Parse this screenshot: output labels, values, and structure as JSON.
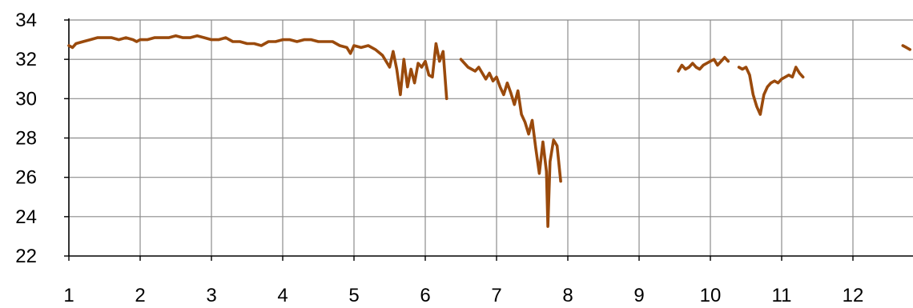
{
  "chart_data": {
    "type": "line",
    "title": "",
    "xlabel": "",
    "ylabel": "",
    "xlim": [
      1,
      12.8
    ],
    "ylim": [
      22,
      34
    ],
    "x_ticks": [
      1,
      2,
      3,
      4,
      5,
      6,
      7,
      8,
      9,
      10,
      11,
      12
    ],
    "x_tick_labels": [
      "1",
      "2",
      "3",
      "4",
      "5",
      "6",
      "7",
      "8",
      "9",
      "10",
      "11",
      "12"
    ],
    "y_ticks": [
      22,
      24,
      26,
      28,
      30,
      32,
      34
    ],
    "y_tick_labels": [
      "22",
      "24",
      "26",
      "28",
      "30",
      "32",
      "34"
    ],
    "grid": true,
    "legend": "none",
    "line_color": "#9a4a0c",
    "segments": [
      {
        "x": [
          1.0,
          1.05,
          1.1,
          1.2,
          1.3,
          1.4,
          1.5,
          1.6,
          1.7,
          1.8,
          1.9,
          1.95,
          2.0,
          2.1,
          2.2,
          2.3,
          2.4,
          2.5,
          2.6,
          2.7,
          2.8,
          2.9,
          3.0,
          3.1,
          3.2,
          3.3,
          3.4,
          3.5,
          3.6,
          3.7,
          3.8,
          3.9,
          4.0,
          4.1,
          4.2,
          4.3,
          4.4,
          4.5,
          4.6,
          4.7,
          4.8,
          4.9,
          4.95,
          5.0,
          5.1,
          5.2,
          5.3,
          5.4,
          5.5,
          5.55,
          5.6,
          5.65,
          5.7,
          5.75,
          5.8,
          5.85,
          5.9,
          5.95,
          6.0,
          6.05,
          6.1,
          6.15,
          6.2,
          6.25,
          6.3
        ],
        "y": [
          32.7,
          32.6,
          32.8,
          32.9,
          33.0,
          33.1,
          33.1,
          33.1,
          33.0,
          33.1,
          33.0,
          32.9,
          33.0,
          33.0,
          33.1,
          33.1,
          33.1,
          33.2,
          33.1,
          33.1,
          33.2,
          33.1,
          33.0,
          33.0,
          33.1,
          32.9,
          32.9,
          32.8,
          32.8,
          32.7,
          32.9,
          32.9,
          33.0,
          33.0,
          32.9,
          33.0,
          33.0,
          32.9,
          32.9,
          32.9,
          32.7,
          32.6,
          32.3,
          32.7,
          32.6,
          32.7,
          32.5,
          32.2,
          31.6,
          32.4,
          31.5,
          30.2,
          32.0,
          30.6,
          31.5,
          30.8,
          31.8,
          31.6,
          31.9,
          31.2,
          31.1,
          32.8,
          31.9,
          32.4,
          30.0
        ]
      },
      {
        "x": [
          6.5,
          6.55,
          6.6,
          6.65,
          6.7,
          6.75,
          6.8,
          6.85,
          6.9,
          6.95,
          7.0,
          7.05,
          7.1,
          7.15,
          7.2,
          7.25,
          7.3,
          7.35,
          7.4,
          7.45,
          7.5,
          7.55,
          7.6,
          7.65,
          7.7,
          7.72,
          7.75,
          7.8,
          7.85,
          7.9
        ],
        "y": [
          32.0,
          31.8,
          31.6,
          31.5,
          31.4,
          31.6,
          31.3,
          31.0,
          31.3,
          30.9,
          31.1,
          30.6,
          30.2,
          30.8,
          30.3,
          29.7,
          30.4,
          29.2,
          28.8,
          28.2,
          28.9,
          27.5,
          26.2,
          27.8,
          26.3,
          23.5,
          26.8,
          27.9,
          27.6,
          25.8
        ]
      },
      {
        "x": [
          9.55,
          9.6,
          9.65,
          9.7,
          9.75,
          9.8,
          9.85,
          9.9,
          9.95,
          10.0,
          10.05,
          10.1,
          10.15,
          10.2,
          10.25
        ],
        "y": [
          31.4,
          31.7,
          31.5,
          31.6,
          31.8,
          31.6,
          31.5,
          31.7,
          31.8,
          31.9,
          32.0,
          31.7,
          31.9,
          32.1,
          31.9
        ]
      },
      {
        "x": [
          10.4,
          10.45,
          10.5,
          10.55,
          10.6,
          10.65,
          10.7,
          10.75,
          10.8,
          10.85,
          10.9,
          10.95,
          11.0,
          11.05,
          11.1,
          11.15,
          11.2,
          11.25,
          11.3
        ],
        "y": [
          31.6,
          31.5,
          31.6,
          31.2,
          30.2,
          29.6,
          29.2,
          30.2,
          30.6,
          30.8,
          30.9,
          30.8,
          31.0,
          31.1,
          31.2,
          31.1,
          31.6,
          31.3,
          31.1
        ]
      },
      {
        "x": [
          12.7,
          12.75,
          12.8
        ],
        "y": [
          32.7,
          32.6,
          32.5
        ]
      }
    ]
  }
}
